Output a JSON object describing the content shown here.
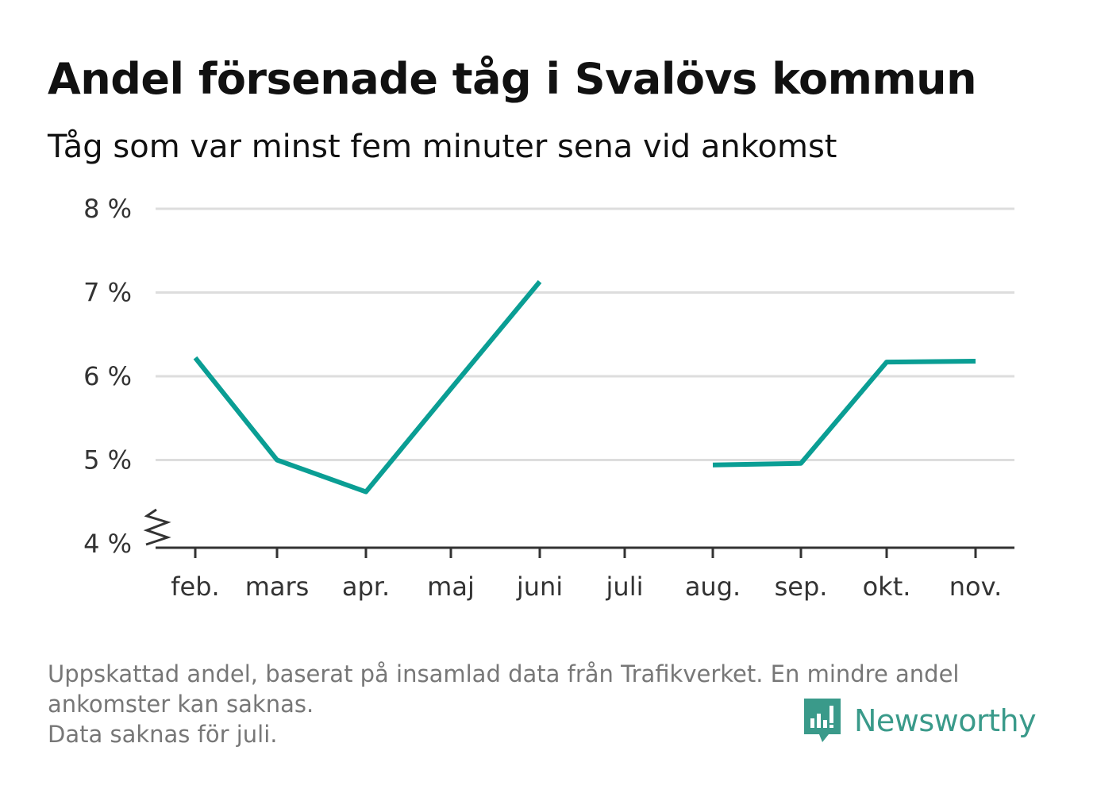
{
  "header": {
    "title": "Andel försenade tåg i Svalövs kommun",
    "subtitle": "Tåg som var minst fem minuter sena vid ankomst"
  },
  "chart_data": {
    "type": "line",
    "categories": [
      "feb.",
      "mars",
      "apr.",
      "maj",
      "juni",
      "juli",
      "aug.",
      "sep.",
      "okt.",
      "nov."
    ],
    "series": [
      {
        "values": [
          6.22,
          5.0,
          4.62,
          5.85,
          7.13,
          null,
          4.94,
          4.96,
          6.17,
          6.18
        ]
      }
    ],
    "ylim": [
      4,
      8
    ],
    "yticks": [
      4,
      5,
      6,
      7,
      8
    ],
    "ytick_suffix": " %",
    "axis_break": true,
    "grid": true,
    "line_color": "#0a9e94"
  },
  "footer": {
    "lines": [
      "Uppskattad andel, baserat på insamlad data från Trafikverket. En mindre andel",
      "ankomster kan saknas.",
      "Data saknas för juli."
    ]
  },
  "brand": {
    "name": "Newsworthy",
    "icon": "newsworthy-logo-icon",
    "color": "#3a9a8a"
  }
}
